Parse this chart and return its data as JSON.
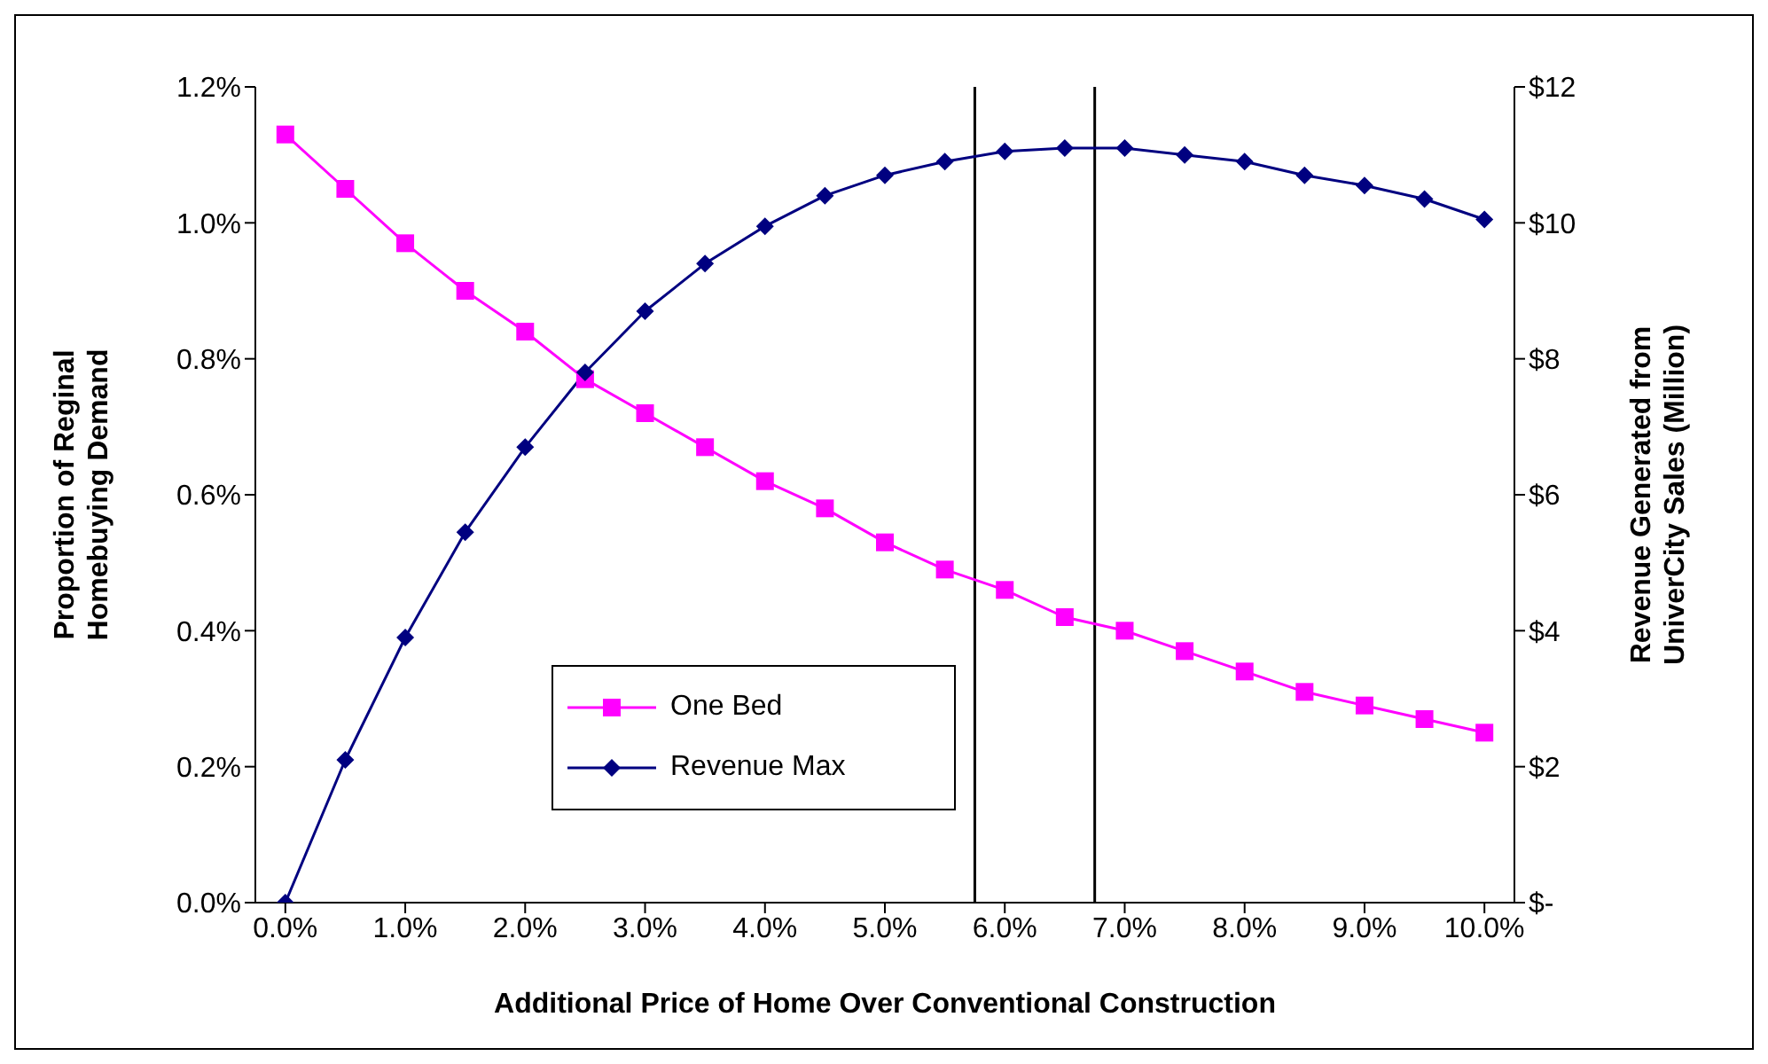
{
  "chart_data": {
    "type": "line",
    "xlabel": "Additional Price of Home Over Conventional Construction",
    "ylabel": "Proportion of Reginal Homebuying Demand",
    "y2label": "Revenue Generated from UniverCity Sales (Million)",
    "x": [
      0,
      0.5,
      1,
      1.5,
      2,
      2.5,
      3,
      3.5,
      4,
      4.5,
      5,
      5.5,
      6,
      6.5,
      7,
      7.5,
      8,
      8.5,
      9,
      9.5,
      10
    ],
    "xlim": [
      -0.25,
      10.25
    ],
    "xticks": [
      {
        "value": 0,
        "label": "0.0%"
      },
      {
        "value": 1,
        "label": "1.0%"
      },
      {
        "value": 2,
        "label": "2.0%"
      },
      {
        "value": 3,
        "label": "3.0%"
      },
      {
        "value": 4,
        "label": "4.0%"
      },
      {
        "value": 5,
        "label": "5.0%"
      },
      {
        "value": 6,
        "label": "6.0%"
      },
      {
        "value": 7,
        "label": "7.0%"
      },
      {
        "value": 8,
        "label": "8.0%"
      },
      {
        "value": 9,
        "label": "9.0%"
      },
      {
        "value": 10,
        "label": "10.0%"
      }
    ],
    "ylim": [
      0,
      1.2
    ],
    "yticks": [
      {
        "value": 0,
        "label": "0.0%"
      },
      {
        "value": 0.2,
        "label": "0.2%"
      },
      {
        "value": 0.4,
        "label": "0.4%"
      },
      {
        "value": 0.6,
        "label": "0.6%"
      },
      {
        "value": 0.8,
        "label": "0.8%"
      },
      {
        "value": 1,
        "label": "1.0%"
      },
      {
        "value": 1.2,
        "label": "1.2%"
      }
    ],
    "y2lim": [
      0,
      12
    ],
    "y2ticks": [
      {
        "value": 0,
        "label": "$-"
      },
      {
        "value": 2,
        "label": "$2"
      },
      {
        "value": 4,
        "label": "$4"
      },
      {
        "value": 6,
        "label": "$6"
      },
      {
        "value": 8,
        "label": "$8"
      },
      {
        "value": 10,
        "label": "$10"
      },
      {
        "value": 12,
        "label": "$12"
      }
    ],
    "series": [
      {
        "name": "One Bed",
        "color": "#ff00ff",
        "marker": "square",
        "values": [
          1.13,
          1.05,
          0.97,
          0.9,
          0.84,
          0.77,
          0.72,
          0.67,
          0.62,
          0.58,
          0.53,
          0.49,
          0.46,
          0.42,
          0.4,
          0.37,
          0.34,
          0.31,
          0.29,
          0.27,
          0.25
        ]
      },
      {
        "name": "Revenue Max",
        "color": "#000080",
        "marker": "diamond",
        "axis": "y2",
        "values": [
          0,
          2.1,
          3.9,
          5.45,
          6.7,
          7.8,
          8.7,
          9.4,
          9.95,
          10.4,
          10.7,
          10.9,
          11.05,
          11.1,
          11.1,
          11,
          10.9,
          10.7,
          10.55,
          10.35,
          10.05
        ]
      }
    ],
    "ref_lines": [
      {
        "axis": "x",
        "value": 5.75,
        "color": "#000000"
      },
      {
        "axis": "x",
        "value": 6.75,
        "color": "#000000"
      }
    ],
    "grid": false,
    "legend": "bottom"
  }
}
